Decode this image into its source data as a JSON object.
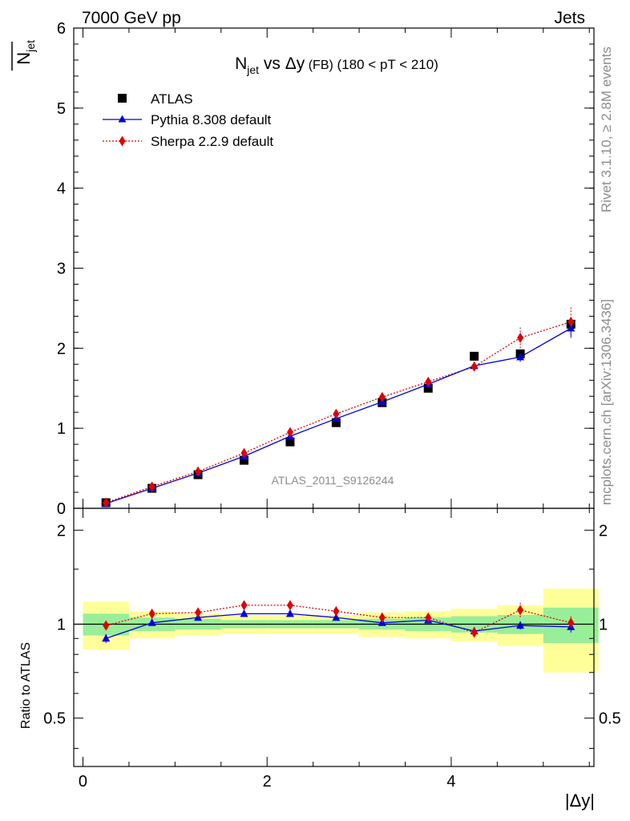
{
  "header": {
    "left": "7000 GeV pp",
    "right": "Jets"
  },
  "side_text": {
    "rivet": "Rivet 3.1.10, ≥ 2.8M events",
    "source": "mcplots.cern.ch [arXiv:1306.3436]"
  },
  "watermark": "ATLAS_2011_S9126244",
  "colors": {
    "data": "#000000",
    "pythia": "#0000e0",
    "sherpa": "#e00000",
    "band_inner": "#99ee99",
    "band_outer": "#ffff99"
  },
  "chart_data": [
    {
      "type": "scatter",
      "panel": "main",
      "title": "N_jet vs Δy (FB) (180 < pT < 210)",
      "title_parts": {
        "n": "N",
        "sub": "jet",
        "vs": " vs Δy",
        "fb": " (FB)",
        "range": " (180 < pT < 210)"
      },
      "ylabel": "N_jet (overlined)",
      "ylabel_parts": {
        "n": "N",
        "sub": "jet"
      },
      "xlim": [
        -0.1,
        5.55
      ],
      "ylim": [
        0,
        6
      ],
      "y_ticks": [
        0,
        1,
        2,
        3,
        4,
        5,
        6
      ],
      "legend_position": "top-left",
      "x": [
        0.25,
        0.75,
        1.25,
        1.75,
        2.25,
        2.75,
        3.25,
        3.75,
        4.25,
        4.75,
        5.3
      ],
      "x_bins": [
        [
          0.0,
          0.5
        ],
        [
          0.5,
          1.0
        ],
        [
          1.0,
          1.5
        ],
        [
          1.5,
          2.0
        ],
        [
          2.0,
          2.5
        ],
        [
          2.5,
          3.0
        ],
        [
          3.0,
          3.5
        ],
        [
          3.5,
          4.0
        ],
        [
          4.0,
          4.5
        ],
        [
          4.5,
          5.0
        ],
        [
          5.0,
          5.6
        ]
      ],
      "series": [
        {
          "name": "ATLAS",
          "marker": "square",
          "values": [
            0.07,
            0.25,
            0.42,
            0.6,
            0.83,
            1.07,
            1.32,
            1.5,
            1.9,
            1.93,
            2.3
          ]
        },
        {
          "name": "Pythia 8.308 default",
          "marker": "triangle",
          "line": "solid",
          "values": [
            0.06,
            0.25,
            0.44,
            0.65,
            0.9,
            1.12,
            1.33,
            1.55,
            1.78,
            1.89,
            2.25
          ],
          "errors": [
            0.01,
            0.01,
            0.01,
            0.01,
            0.01,
            0.01,
            0.02,
            0.02,
            0.04,
            0.06,
            0.12
          ]
        },
        {
          "name": "Sherpa 2.2.9 default",
          "marker": "diamond",
          "line": "dotted",
          "values": [
            0.07,
            0.27,
            0.46,
            0.69,
            0.95,
            1.18,
            1.39,
            1.58,
            1.77,
            2.13,
            2.33
          ],
          "errors": [
            0.01,
            0.01,
            0.01,
            0.02,
            0.02,
            0.02,
            0.03,
            0.03,
            0.05,
            0.13,
            0.18
          ]
        }
      ]
    },
    {
      "type": "scatter",
      "panel": "ratio",
      "ylabel": "Ratio to ATLAS",
      "xlabel": "|Δy|",
      "xlim": [
        -0.1,
        5.55
      ],
      "ylim": [
        0.35,
        2.35
      ],
      "x_ticks": [
        0,
        2,
        4
      ],
      "y_ticks": [
        0.5,
        1,
        2
      ],
      "band_inner": [
        [
          0.92,
          1.08
        ],
        [
          0.95,
          1.05
        ],
        [
          0.96,
          1.04
        ],
        [
          0.97,
          1.03
        ],
        [
          0.97,
          1.03
        ],
        [
          0.97,
          1.03
        ],
        [
          0.96,
          1.04
        ],
        [
          0.95,
          1.05
        ],
        [
          0.94,
          1.06
        ],
        [
          0.93,
          1.07
        ],
        [
          0.87,
          1.13
        ]
      ],
      "band_outer": [
        [
          0.83,
          1.18
        ],
        [
          0.9,
          1.1
        ],
        [
          0.92,
          1.08
        ],
        [
          0.93,
          1.07
        ],
        [
          0.93,
          1.07
        ],
        [
          0.93,
          1.07
        ],
        [
          0.91,
          1.09
        ],
        [
          0.9,
          1.1
        ],
        [
          0.88,
          1.12
        ],
        [
          0.85,
          1.15
        ],
        [
          0.7,
          1.3
        ]
      ],
      "x": [
        0.25,
        0.75,
        1.25,
        1.75,
        2.25,
        2.75,
        3.25,
        3.75,
        4.25,
        4.75,
        5.3
      ],
      "series": [
        {
          "name": "Pythia 8.308 default",
          "marker": "triangle",
          "line": "solid",
          "values": [
            0.9,
            1.01,
            1.05,
            1.08,
            1.08,
            1.05,
            1.01,
            1.03,
            0.95,
            0.99,
            0.98
          ],
          "errors": [
            0.03,
            0.01,
            0.01,
            0.01,
            0.01,
            0.01,
            0.01,
            0.01,
            0.02,
            0.03,
            0.04
          ]
        },
        {
          "name": "Sherpa 2.2.9 default",
          "marker": "diamond",
          "line": "dotted",
          "values": [
            0.99,
            1.08,
            1.09,
            1.15,
            1.15,
            1.1,
            1.05,
            1.05,
            0.94,
            1.11,
            1.01
          ],
          "errors": [
            0.02,
            0.01,
            0.01,
            0.01,
            0.01,
            0.01,
            0.01,
            0.02,
            0.02,
            0.06,
            0.05
          ]
        }
      ]
    }
  ]
}
